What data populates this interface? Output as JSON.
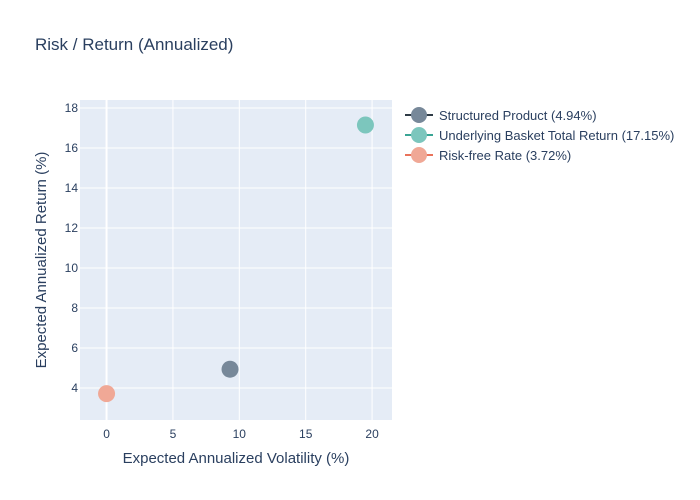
{
  "chart_data": {
    "type": "scatter",
    "title": "Risk / Return (Annualized)",
    "xlabel": "Expected Annualized Volatility (%)",
    "ylabel": "Expected Annualized Return (%)",
    "xlim": [
      -2,
      21.5
    ],
    "ylim": [
      2.4,
      18.4
    ],
    "xticks": [
      0,
      5,
      10,
      15,
      20
    ],
    "yticks": [
      4,
      6,
      8,
      10,
      12,
      14,
      16,
      18
    ],
    "grid": true,
    "legend_position": "top-right",
    "series": [
      {
        "name": "Structured Product (4.94%)",
        "x": [
          9.3
        ],
        "y": [
          4.94
        ],
        "color": "#778899",
        "line_color": "#2f3b46"
      },
      {
        "name": "Underlying Basket Total Return (17.15%)",
        "x": [
          19.5
        ],
        "y": [
          17.15
        ],
        "color": "#7cc6bd",
        "line_color": "#3aa595"
      },
      {
        "name": "Risk-free Rate (3.72%)",
        "x": [
          0
        ],
        "y": [
          3.72
        ],
        "color": "#f0a896",
        "line_color": "#e9735b"
      }
    ]
  },
  "colors": {
    "plot_bg": "#e5ecf6",
    "grid": "#ffffff",
    "text": "#2a3f5f"
  }
}
